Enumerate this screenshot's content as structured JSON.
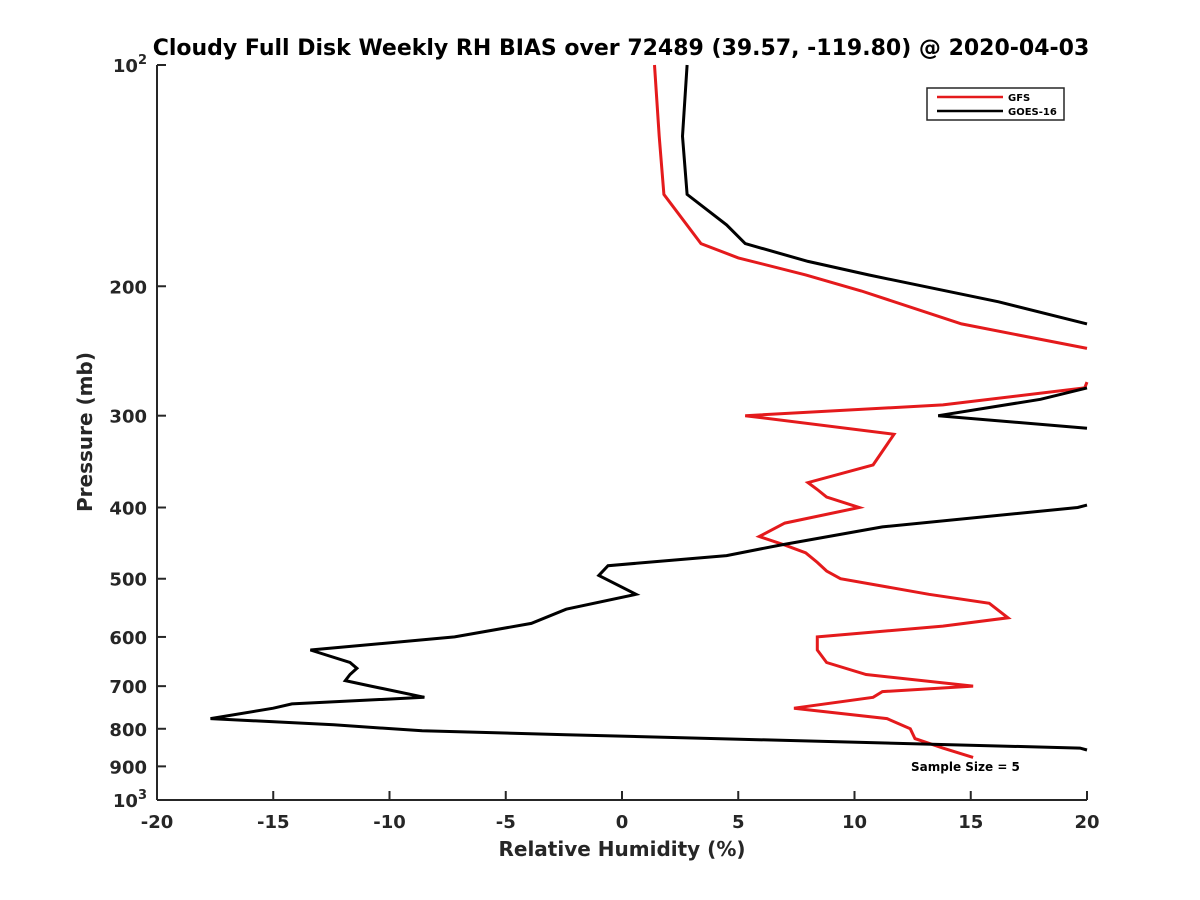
{
  "chart_data": {
    "type": "line",
    "title": "Cloudy Full Disk Weekly RH BIAS over 72489 (39.57, -119.80) @ 2020-04-03",
    "xlabel": "Relative Humidity (%)",
    "ylabel": "Pressure (mb)",
    "xlim": [
      -20,
      20
    ],
    "ylim": [
      100,
      1000
    ],
    "yscale": "log",
    "y_reversed": true,
    "grid": false,
    "legend_position": "top-right",
    "x_ticks": [
      -20,
      -15,
      -10,
      -5,
      0,
      5,
      10,
      15,
      20
    ],
    "x_tick_labels": [
      "-20",
      "-15",
      "-10",
      "-5",
      "0",
      "5",
      "10",
      "15",
      "20"
    ],
    "y_ticks": [
      {
        "value": 100,
        "base": "10",
        "exp": "2"
      },
      {
        "value": 200,
        "label": "200"
      },
      {
        "value": 300,
        "label": "300"
      },
      {
        "value": 400,
        "label": "400"
      },
      {
        "value": 500,
        "label": "500"
      },
      {
        "value": 600,
        "label": "600"
      },
      {
        "value": 700,
        "label": "700"
      },
      {
        "value": 800,
        "label": "800"
      },
      {
        "value": 900,
        "label": "900"
      },
      {
        "value": 1000,
        "base": "10",
        "exp": "3"
      }
    ],
    "series": [
      {
        "name": "GFS",
        "color": "#e41a1c",
        "segments": [
          [
            [
              1.4,
              100
            ],
            [
              1.6,
              125
            ],
            [
              1.8,
              150
            ],
            [
              3.4,
              175
            ],
            [
              5.0,
              183
            ],
            [
              7.9,
              193
            ],
            [
              10.3,
              203
            ],
            [
              14.6,
              225
            ],
            [
              20.0,
              243
            ]
          ],
          [
            [
              20.0,
              270
            ],
            [
              19.9,
              275
            ],
            [
              13.8,
              290
            ],
            [
              5.3,
              300
            ],
            [
              11.7,
              318
            ],
            [
              10.8,
              350
            ],
            [
              8.0,
              370
            ],
            [
              8.4,
              378
            ],
            [
              8.8,
              387
            ],
            [
              10.2,
              400
            ],
            [
              7.0,
              420
            ],
            [
              5.9,
              438
            ],
            [
              7.0,
              450
            ],
            [
              7.9,
              461
            ],
            [
              8.4,
              475
            ],
            [
              8.8,
              488
            ],
            [
              9.4,
              500
            ],
            [
              13.2,
              525
            ],
            [
              15.8,
              540
            ],
            [
              16.6,
              565
            ],
            [
              13.8,
              580
            ],
            [
              8.4,
              600
            ],
            [
              8.4,
              625
            ],
            [
              8.8,
              650
            ],
            [
              10.5,
              675
            ],
            [
              15.1,
              700
            ],
            [
              11.2,
              712
            ],
            [
              10.8,
              725
            ],
            [
              7.4,
              750
            ],
            [
              11.4,
              775
            ],
            [
              12.4,
              800
            ],
            [
              12.6,
              825
            ],
            [
              13.8,
              850
            ],
            [
              15.1,
              875
            ]
          ]
        ]
      },
      {
        "name": "GOES-16",
        "color": "#000000",
        "segments": [
          [
            [
              2.8,
              100
            ],
            [
              2.6,
              125
            ],
            [
              2.8,
              150
            ],
            [
              4.5,
              165
            ],
            [
              5.3,
              175
            ],
            [
              8.0,
              185
            ],
            [
              10.6,
              193
            ],
            [
              16.2,
              210
            ],
            [
              20.0,
              225
            ]
          ],
          [
            [
              20.0,
              275
            ],
            [
              18.0,
              285
            ],
            [
              13.6,
              300
            ],
            [
              20.0,
              312
            ]
          ],
          [
            [
              20.0,
              397
            ],
            [
              19.6,
              400
            ],
            [
              11.2,
              425
            ],
            [
              6.8,
              450
            ],
            [
              4.5,
              465
            ],
            [
              -0.6,
              480
            ],
            [
              -1.0,
              495
            ],
            [
              0.6,
              525
            ],
            [
              -2.4,
              550
            ],
            [
              -3.9,
              575
            ],
            [
              -7.2,
              600
            ],
            [
              -13.4,
              625
            ],
            [
              -11.7,
              650
            ],
            [
              -11.4,
              662
            ],
            [
              -11.7,
              675
            ],
            [
              -11.9,
              688
            ],
            [
              -10.8,
              700
            ],
            [
              -8.5,
              725
            ],
            [
              -14.2,
              740
            ],
            [
              -15.0,
              750
            ],
            [
              -17.7,
              775
            ],
            [
              -12.4,
              790
            ],
            [
              -8.6,
              805
            ],
            [
              -2.4,
              815
            ],
            [
              19.7,
              850
            ],
            [
              20.0,
              855
            ]
          ]
        ]
      }
    ],
    "legend": [
      {
        "name": "GFS",
        "color": "#e41a1c"
      },
      {
        "name": "GOES-16",
        "color": "#000000"
      }
    ],
    "annotations": [
      {
        "text": "Sample Size = 5"
      }
    ]
  }
}
